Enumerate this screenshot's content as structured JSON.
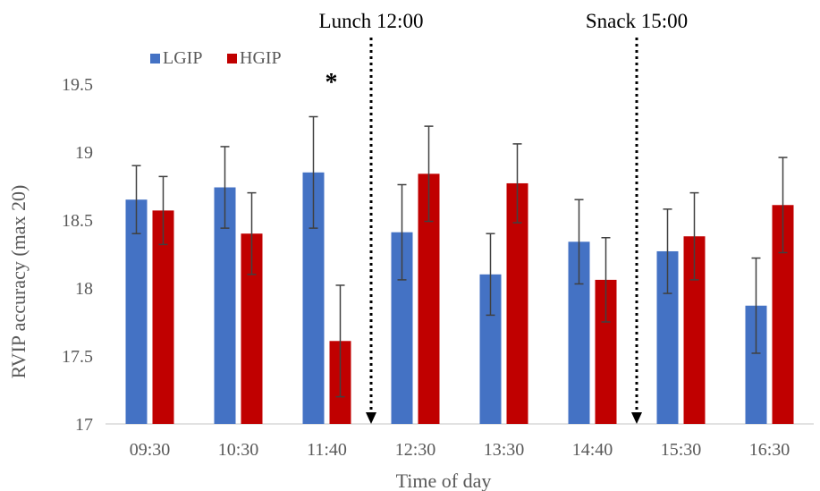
{
  "chart_data": {
    "type": "bar",
    "title": "",
    "xlabel": "Time of day",
    "ylabel": "RVIP accuracy (max 20)",
    "ylim": [
      17,
      19.5
    ],
    "yticks": [
      17,
      17.5,
      18,
      18.5,
      19,
      19.5
    ],
    "ytick_labels": [
      "17",
      "17.5",
      "18",
      "18.5",
      "19",
      "19.5"
    ],
    "categories": [
      "09:30",
      "10:30",
      "11:40",
      "12:30",
      "13:30",
      "14:40",
      "15:30",
      "16:30"
    ],
    "series": [
      {
        "name": "LGIP",
        "color": "#4472C4",
        "values": [
          18.65,
          18.74,
          18.85,
          18.41,
          18.1,
          18.34,
          18.27,
          17.87
        ],
        "error": [
          0.25,
          0.3,
          0.41,
          0.35,
          0.3,
          0.31,
          0.31,
          0.35
        ]
      },
      {
        "name": "HGIP",
        "color": "#C00000",
        "values": [
          18.57,
          18.4,
          17.61,
          18.84,
          18.77,
          18.06,
          18.38,
          18.61
        ],
        "error": [
          0.25,
          0.3,
          0.41,
          0.35,
          0.29,
          0.31,
          0.32,
          0.35
        ]
      }
    ],
    "legend": {
      "position": "top-left"
    },
    "grid": false,
    "annotations": [
      {
        "text": "*",
        "category": "11:40"
      }
    ],
    "events": [
      {
        "label": "Lunch 12:00",
        "between": [
          "11:40",
          "12:30"
        ]
      },
      {
        "label": "Snack 15:00",
        "between": [
          "14:40",
          "15:30"
        ]
      }
    ]
  }
}
